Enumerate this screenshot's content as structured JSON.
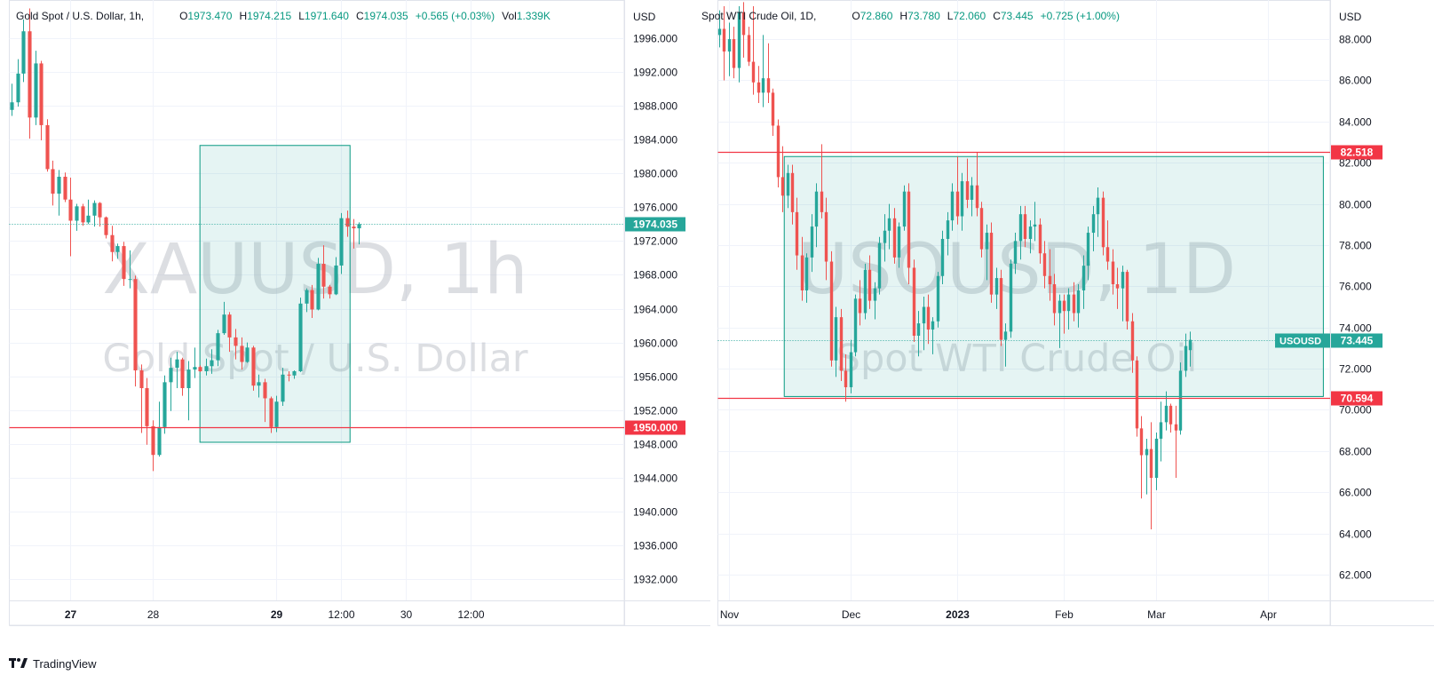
{
  "footer": {
    "brand": "TradingView",
    "logo_icon": "tradingview-logo-icon"
  },
  "chart_data": [
    {
      "type": "candlestick",
      "symbol": "XAUUSD",
      "interval": "1h",
      "title": "Gold Spot / U.S. Dollar, 1h,",
      "watermark": {
        "line1": "XAUUSD, 1h",
        "line2": "Gold Spot / U.S. Dollar"
      },
      "ohlc_legend": {
        "open": "1973.470",
        "high": "1974.215",
        "low": "1971.640",
        "close": "1974.035",
        "change": "+0.565 (+0.03%)",
        "volume": "1.339K"
      },
      "currency": "USD",
      "y_ticks": [
        "1996.000",
        "1992.000",
        "1988.000",
        "1984.000",
        "1980.000",
        "1976.000",
        "1972.000",
        "1968.000",
        "1964.000",
        "1960.000",
        "1956.000",
        "1952.000",
        "1948.000",
        "1944.000",
        "1940.000",
        "1936.000",
        "1932.000"
      ],
      "ylim": [
        1929.5,
        2000.5
      ],
      "x_ticks": [
        {
          "label": "27",
          "bar": 10,
          "bold": true
        },
        {
          "label": "28",
          "bar": 24,
          "bold": false
        },
        {
          "label": "29",
          "bar": 45,
          "bold": true
        },
        {
          "label": "12:00",
          "bar": 56,
          "bold": false
        },
        {
          "label": "30",
          "bar": 67,
          "bold": false
        },
        {
          "label": "12:00",
          "bar": 78,
          "bold": false
        }
      ],
      "price_label": {
        "value": "1974.035",
        "color": "#26a69a"
      },
      "horizontal_lines": [
        {
          "value": 1950.0,
          "label": "1950.000",
          "color": "#f23645"
        }
      ],
      "rectangle": {
        "x_from_bar": 32,
        "x_to_bar": 57.5,
        "y_top": 1983.3,
        "y_bottom": 1948.2
      },
      "colors": {
        "up": "#26a69a",
        "down": "#ef5350"
      },
      "candles": [
        [
          1987.5,
          1990.6,
          1986.8,
          1988.4
        ],
        [
          1988.4,
          1993.5,
          1987.9,
          1991.8
        ],
        [
          1991.8,
          1998.2,
          1990.8,
          1996.8
        ],
        [
          1996.8,
          1999.5,
          1984.1,
          1986.6
        ],
        [
          1986.6,
          1994.5,
          1985.7,
          1993.0
        ],
        [
          1993.0,
          1993.3,
          1983.9,
          1985.7
        ],
        [
          1985.7,
          1986.4,
          1980.2,
          1980.5
        ],
        [
          1980.5,
          1981.5,
          1976.2,
          1977.6
        ],
        [
          1977.6,
          1980.4,
          1975.0,
          1979.6
        ],
        [
          1979.6,
          1980.1,
          1976.6,
          1976.9
        ],
        [
          1976.9,
          1979.5,
          1970.2,
          1974.4
        ],
        [
          1974.4,
          1976.4,
          1973.2,
          1976.1
        ],
        [
          1976.1,
          1976.4,
          1973.8,
          1974.2
        ],
        [
          1974.2,
          1976.9,
          1974.0,
          1975.0
        ],
        [
          1975.0,
          1976.8,
          1973.7,
          1976.5
        ],
        [
          1976.5,
          1976.6,
          1973.7,
          1974.8
        ],
        [
          1974.8,
          1974.9,
          1972.3,
          1972.7
        ],
        [
          1972.7,
          1973.8,
          1969.6,
          1970.7
        ],
        [
          1970.7,
          1971.7,
          1969.9,
          1971.4
        ],
        [
          1971.4,
          1971.9,
          1966.7,
          1967.5
        ],
        [
          1967.5,
          1970.9,
          1966.4,
          1967.5
        ],
        [
          1967.5,
          1967.9,
          1954.8,
          1956.7
        ],
        [
          1956.7,
          1957.4,
          1949.3,
          1954.6
        ],
        [
          1954.6,
          1955.8,
          1947.9,
          1950.1
        ],
        [
          1950.1,
          1950.8,
          1944.8,
          1946.7
        ],
        [
          1946.7,
          1953.0,
          1946.5,
          1950.0
        ],
        [
          1950.0,
          1956.1,
          1949.2,
          1955.3
        ],
        [
          1955.3,
          1958.2,
          1951.9,
          1957.0
        ],
        [
          1957.0,
          1958.9,
          1954.6,
          1958.0
        ],
        [
          1958.0,
          1958.2,
          1953.7,
          1954.6
        ],
        [
          1954.6,
          1957.8,
          1950.8,
          1956.8
        ],
        [
          1956.8,
          1959.4,
          1955.8,
          1957.1
        ],
        [
          1957.1,
          1957.3,
          1956.5,
          1956.6
        ],
        [
          1956.6,
          1958.1,
          1956.1,
          1957.2
        ],
        [
          1957.2,
          1959.2,
          1956.3,
          1957.9
        ],
        [
          1957.9,
          1961.5,
          1957.2,
          1961.1
        ],
        [
          1961.1,
          1964.8,
          1960.9,
          1963.3
        ],
        [
          1963.3,
          1963.6,
          1958.9,
          1960.6
        ],
        [
          1960.6,
          1961.6,
          1958.0,
          1959.6
        ],
        [
          1959.6,
          1960.6,
          1956.8,
          1957.7
        ],
        [
          1957.7,
          1960.0,
          1957.6,
          1959.4
        ],
        [
          1959.4,
          1959.6,
          1954.3,
          1954.9
        ],
        [
          1954.9,
          1956.2,
          1953.5,
          1955.3
        ],
        [
          1955.3,
          1955.7,
          1950.6,
          1953.4
        ],
        [
          1953.4,
          1953.6,
          1949.3,
          1950.0
        ],
        [
          1950.0,
          1953.7,
          1949.4,
          1953.0
        ],
        [
          1953.0,
          1957.0,
          1952.5,
          1956.2
        ],
        [
          1956.2,
          1956.6,
          1955.4,
          1956.1
        ],
        [
          1956.1,
          1956.7,
          1955.7,
          1956.6
        ],
        [
          1956.6,
          1965.3,
          1956.5,
          1964.6
        ],
        [
          1964.6,
          1966.4,
          1963.6,
          1966.2
        ],
        [
          1966.2,
          1966.8,
          1962.9,
          1963.9
        ],
        [
          1963.9,
          1970.0,
          1963.8,
          1969.3
        ],
        [
          1969.3,
          1971.5,
          1965.2,
          1966.6
        ],
        [
          1966.6,
          1966.8,
          1965.2,
          1965.7
        ],
        [
          1965.7,
          1970.1,
          1965.6,
          1969.1
        ],
        [
          1969.1,
          1975.3,
          1968.1,
          1974.7
        ],
        [
          1974.7,
          1975.6,
          1972.5,
          1973.7
        ],
        [
          1973.7,
          1974.6,
          1971.1,
          1973.5
        ],
        [
          1973.5,
          1974.2,
          1971.6,
          1974.0
        ]
      ]
    },
    {
      "type": "candlestick",
      "symbol": "USOUSD",
      "interval": "1D",
      "title": "Spot WTI Crude Oil, 1D,",
      "watermark": {
        "line1": "USOUSD, 1D",
        "line2": "Spot WTI Crude Oil"
      },
      "ohlc_legend": {
        "open": "72.860",
        "high": "73.780",
        "low": "72.060",
        "close": "73.445",
        "change": "+0.725 (+1.00%)"
      },
      "currency": "USD",
      "y_ticks": [
        "88.000",
        "86.000",
        "84.000",
        "82.000",
        "80.000",
        "78.000",
        "76.000",
        "74.000",
        "72.000",
        "70.000",
        "68.000",
        "66.000",
        "64.000",
        "62.000"
      ],
      "ylim": [
        60.75,
        89.9
      ],
      "x_ticks": [
        {
          "label": "Nov",
          "bar": 2,
          "bold": false
        },
        {
          "label": "Dec",
          "bar": 27,
          "bold": false
        },
        {
          "label": "2023",
          "bar": 49,
          "bold": true
        },
        {
          "label": "Feb",
          "bar": 71,
          "bold": false
        },
        {
          "label": "Mar",
          "bar": 90,
          "bold": false
        },
        {
          "label": "Apr",
          "bar": 113,
          "bold": false
        }
      ],
      "price_label": {
        "ticker": "USOUSD",
        "value": "73.445",
        "color": "#26a69a"
      },
      "horizontal_lines": [
        {
          "value": 82.518,
          "label": "82.518",
          "color": "#f23645"
        },
        {
          "value": 70.594,
          "label": "70.594",
          "color": "#f23645"
        }
      ],
      "rectangle": {
        "x_from_bar": 13.4,
        "x_to_bar": 124.5,
        "y_top": 82.3,
        "y_bottom": 70.65
      },
      "colors": {
        "up": "#26a69a",
        "down": "#ef5350"
      },
      "candles": [
        [
          88.2,
          89.4,
          87.6,
          88.5
        ],
        [
          88.5,
          89.6,
          86.0,
          87.4
        ],
        [
          87.4,
          88.8,
          86.2,
          88.0
        ],
        [
          88.0,
          88.6,
          86.1,
          86.6
        ],
        [
          86.6,
          89.6,
          85.9,
          89.3
        ],
        [
          89.3,
          89.8,
          87.1,
          88.2
        ],
        [
          88.2,
          88.6,
          86.7,
          86.9
        ],
        [
          86.9,
          89.6,
          85.3,
          85.9
        ],
        [
          85.9,
          86.7,
          84.9,
          85.4
        ],
        [
          85.4,
          88.2,
          84.7,
          86.1
        ],
        [
          86.1,
          87.8,
          84.9,
          85.4
        ],
        [
          85.4,
          85.6,
          83.3,
          83.8
        ],
        [
          83.8,
          84.1,
          80.8,
          81.3
        ],
        [
          81.3,
          82.8,
          79.6,
          80.4
        ],
        [
          80.4,
          81.9,
          79.8,
          81.5
        ],
        [
          81.5,
          81.9,
          79.0,
          79.6
        ],
        [
          79.6,
          80.3,
          76.8,
          77.5
        ],
        [
          77.5,
          78.4,
          75.3,
          75.8
        ],
        [
          75.8,
          77.6,
          75.2,
          77.4
        ],
        [
          77.4,
          79.5,
          76.7,
          78.9
        ],
        [
          78.9,
          81.0,
          77.9,
          80.6
        ],
        [
          80.6,
          82.9,
          79.3,
          79.6
        ],
        [
          79.6,
          80.3,
          76.3,
          77.2
        ],
        [
          77.2,
          77.7,
          72.1,
          72.4
        ],
        [
          72.4,
          75.0,
          71.6,
          74.5
        ],
        [
          74.5,
          74.9,
          71.4,
          71.9
        ],
        [
          71.9,
          72.7,
          70.4,
          71.1
        ],
        [
          71.1,
          73.4,
          70.8,
          72.8
        ],
        [
          72.8,
          75.6,
          72.6,
          75.4
        ],
        [
          75.4,
          76.3,
          74.1,
          74.7
        ],
        [
          74.7,
          77.1,
          74.4,
          76.8
        ],
        [
          76.8,
          77.5,
          74.9,
          75.3
        ],
        [
          75.3,
          76.2,
          74.4,
          75.9
        ],
        [
          75.9,
          78.4,
          75.6,
          78.1
        ],
        [
          78.1,
          79.5,
          77.2,
          78.7
        ],
        [
          78.7,
          80.0,
          77.8,
          79.3
        ],
        [
          79.3,
          79.8,
          77.1,
          77.4
        ],
        [
          77.4,
          79.1,
          76.9,
          78.9
        ],
        [
          78.9,
          80.9,
          78.7,
          80.6
        ],
        [
          80.6,
          81.0,
          76.1,
          76.9
        ],
        [
          76.9,
          77.3,
          73.3,
          73.6
        ],
        [
          73.6,
          74.8,
          72.6,
          74.2
        ],
        [
          74.2,
          75.5,
          72.9,
          75.0
        ],
        [
          75.0,
          75.6,
          73.2,
          73.9
        ],
        [
          73.9,
          74.5,
          72.7,
          74.3
        ],
        [
          74.3,
          76.7,
          74.0,
          76.5
        ],
        [
          76.5,
          78.7,
          76.1,
          78.3
        ],
        [
          78.3,
          79.6,
          77.5,
          79.2
        ],
        [
          79.2,
          81.0,
          78.7,
          80.6
        ],
        [
          80.6,
          82.3,
          79.0,
          79.4
        ],
        [
          79.4,
          81.5,
          78.7,
          81.1
        ],
        [
          81.1,
          82.2,
          79.8,
          80.2
        ],
        [
          80.2,
          81.3,
          79.4,
          80.9
        ],
        [
          80.9,
          82.5,
          79.4,
          79.8
        ],
        [
          79.8,
          80.1,
          77.4,
          77.8
        ],
        [
          77.8,
          79.0,
          76.3,
          78.6
        ],
        [
          78.6,
          79.1,
          75.2,
          75.6
        ],
        [
          75.6,
          76.9,
          74.9,
          76.4
        ],
        [
          76.4,
          76.8,
          73.1,
          73.4
        ],
        [
          73.4,
          74.2,
          72.1,
          73.8
        ],
        [
          73.8,
          77.3,
          73.5,
          77.1
        ],
        [
          77.1,
          78.6,
          76.6,
          78.2
        ],
        [
          78.2,
          79.9,
          77.3,
          79.5
        ],
        [
          79.5,
          79.9,
          77.9,
          78.3
        ],
        [
          78.3,
          79.2,
          77.6,
          78.9
        ],
        [
          78.9,
          80.1,
          78.2,
          79.0
        ],
        [
          79.0,
          79.3,
          77.1,
          77.6
        ],
        [
          77.6,
          78.2,
          75.9,
          76.5
        ],
        [
          76.5,
          77.8,
          75.3,
          76.1
        ],
        [
          76.1,
          76.6,
          74.1,
          74.7
        ],
        [
          74.7,
          75.6,
          73.0,
          75.3
        ],
        [
          75.3,
          75.6,
          73.7,
          74.8
        ],
        [
          74.8,
          75.9,
          73.9,
          75.6
        ],
        [
          75.6,
          76.2,
          74.3,
          74.7
        ],
        [
          74.7,
          76.1,
          74.0,
          75.8
        ],
        [
          75.8,
          77.5,
          74.9,
          77.0
        ],
        [
          77.0,
          78.9,
          76.3,
          78.6
        ],
        [
          78.6,
          79.9,
          77.7,
          79.5
        ],
        [
          79.5,
          80.8,
          78.4,
          80.3
        ],
        [
          80.3,
          80.6,
          77.5,
          77.9
        ],
        [
          77.9,
          79.2,
          76.8,
          77.2
        ],
        [
          77.2,
          77.8,
          75.6,
          76.1
        ],
        [
          76.1,
          76.9,
          74.9,
          75.9
        ],
        [
          75.9,
          77.0,
          74.3,
          76.7
        ],
        [
          76.7,
          76.8,
          73.9,
          74.3
        ],
        [
          74.3,
          74.7,
          71.8,
          72.4
        ],
        [
          72.4,
          72.6,
          68.7,
          69.1
        ],
        [
          69.1,
          69.7,
          65.7,
          67.8
        ],
        [
          67.8,
          68.6,
          65.9,
          68.1
        ],
        [
          68.1,
          69.4,
          64.2,
          66.7
        ],
        [
          66.7,
          68.9,
          66.1,
          68.6
        ],
        [
          68.6,
          70.4,
          67.5,
          69.4
        ],
        [
          69.4,
          70.9,
          69.0,
          70.2
        ],
        [
          70.2,
          70.3,
          68.9,
          69.3
        ],
        [
          69.3,
          70.2,
          66.7,
          69.0
        ],
        [
          69.0,
          72.3,
          68.8,
          71.9
        ],
        [
          71.9,
          73.7,
          71.6,
          73.1
        ],
        [
          72.9,
          73.8,
          72.1,
          73.4
        ]
      ]
    }
  ]
}
